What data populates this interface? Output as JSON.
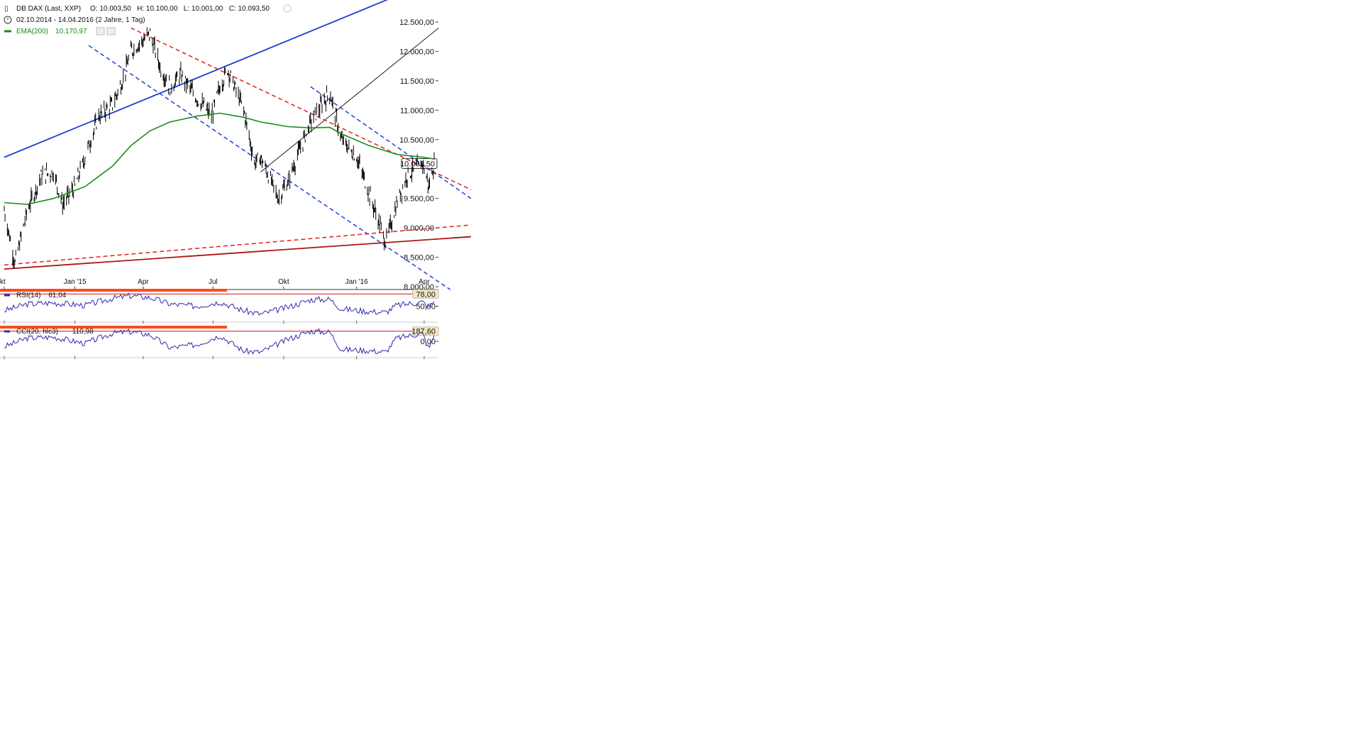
{
  "header": {
    "instrument": "DB DAX (Last, XXP)",
    "ohlc": "O: 10.003,50   H: 10.100,00   L: 10.001,00   C: 10.093,50",
    "range": "02.10.2014 - 14.04.2016 (2 Jahre, 1 Tag)",
    "ema_label": "EMA(200)",
    "ema_value": "10.170,97"
  },
  "colors": {
    "price": "#000000",
    "ema": "#1a8a1a",
    "blue_trend": "#1f3fd6",
    "red_trend": "#e02020",
    "dark_red_trend": "#b01414",
    "indicator": "#2a2ab0",
    "axis_label_box": "#f4e8c0",
    "signal_bar": "#ff4a1a"
  },
  "chart_data": [
    {
      "type": "line",
      "title": "DB DAX (Last, XXP)",
      "x_axis_labels": [
        "kt",
        "Jan '15",
        "Apr",
        "Jul",
        "Okt",
        "Jan '16",
        "Apr"
      ],
      "y_axis_labels": [
        "12.500,00",
        "12.000,00",
        "11.500,00",
        "11.000,00",
        "10.500,00",
        "10.093,50",
        "9.500,00",
        "9.000,00",
        "8.500,00",
        "8.000,00"
      ],
      "ylim": [
        8000,
        12600
      ],
      "last_value_label": "10.093,50",
      "series": [
        {
          "name": "DB DAX",
          "x": [
            "2014-10-02",
            "2014-10-16",
            "2014-11-01",
            "2014-11-20",
            "2014-12-05",
            "2014-12-17",
            "2015-01-02",
            "2015-01-15",
            "2015-02-02",
            "2015-02-20",
            "2015-03-05",
            "2015-03-16",
            "2015-04-10",
            "2015-04-24",
            "2015-05-06",
            "2015-05-20",
            "2015-06-10",
            "2015-06-29",
            "2015-07-10",
            "2015-07-20",
            "2015-08-10",
            "2015-08-24",
            "2015-09-01",
            "2015-09-24",
            "2015-10-07",
            "2015-10-21",
            "2015-11-05",
            "2015-11-30",
            "2015-12-15",
            "2016-01-04",
            "2016-01-20",
            "2016-02-11",
            "2016-02-25",
            "2016-03-10",
            "2016-03-30",
            "2016-04-07",
            "2016-04-14"
          ],
          "values": [
            9300,
            8400,
            9300,
            9900,
            9950,
            9400,
            9700,
            10200,
            10900,
            11100,
            11500,
            12000,
            12300,
            11700,
            11400,
            11600,
            11200,
            10900,
            11400,
            11700,
            11000,
            10100,
            10200,
            9500,
            9800,
            10300,
            10800,
            11300,
            10500,
            10200,
            9600,
            8750,
            9400,
            9900,
            10100,
            9700,
            10093.5
          ]
        },
        {
          "name": "EMA(200)",
          "x": [
            "2014-10-02",
            "2014-11-01",
            "2014-12-05",
            "2015-01-15",
            "2015-02-20",
            "2015-03-16",
            "2015-04-10",
            "2015-05-06",
            "2015-06-10",
            "2015-07-10",
            "2015-08-10",
            "2015-09-01",
            "2015-10-07",
            "2015-11-05",
            "2015-11-30",
            "2015-12-15",
            "2016-01-20",
            "2016-02-25",
            "2016-03-30",
            "2016-04-14"
          ],
          "values": [
            9430,
            9400,
            9500,
            9700,
            10050,
            10400,
            10650,
            10800,
            10900,
            10950,
            10880,
            10800,
            10720,
            10700,
            10710,
            10600,
            10400,
            10250,
            10200,
            10170.97
          ]
        }
      ]
    },
    {
      "type": "line",
      "title": "RSI(14)",
      "value_label": "61,04",
      "y_axis_labels": [
        "78,00",
        "50,00"
      ],
      "ylim": [
        20,
        85
      ],
      "series": [
        {
          "name": "RSI(14)",
          "x": [
            "2014-10-02",
            "2014-11-01",
            "2014-12-05",
            "2015-01-15",
            "2015-02-20",
            "2015-03-16",
            "2015-04-10",
            "2015-05-06",
            "2015-06-10",
            "2015-07-10",
            "2015-08-10",
            "2015-09-01",
            "2015-10-07",
            "2015-11-05",
            "2015-11-30",
            "2015-12-15",
            "2016-01-20",
            "2016-02-11",
            "2016-02-25",
            "2016-03-30",
            "2016-04-07",
            "2016-04-14"
          ],
          "values": [
            40,
            55,
            58,
            52,
            68,
            74,
            70,
            55,
            50,
            60,
            40,
            32,
            48,
            65,
            66,
            44,
            38,
            36,
            52,
            60,
            48,
            61.04
          ]
        }
      ]
    },
    {
      "type": "line",
      "title": "CCI(20, hlc3)",
      "value_label": "110,98",
      "y_axis_labels": [
        "187,60",
        "0,00"
      ],
      "ylim": [
        -250,
        250
      ],
      "series": [
        {
          "name": "CCI(20, hlc3)",
          "x": [
            "2014-10-02",
            "2014-11-01",
            "2014-12-05",
            "2015-01-15",
            "2015-02-20",
            "2015-03-16",
            "2015-04-10",
            "2015-05-06",
            "2015-06-10",
            "2015-07-10",
            "2015-08-10",
            "2015-09-01",
            "2015-10-07",
            "2015-11-05",
            "2015-11-30",
            "2015-12-15",
            "2016-01-20",
            "2016-02-11",
            "2016-02-25",
            "2016-03-30",
            "2016-04-07",
            "2016-04-14"
          ],
          "values": [
            -100,
            60,
            80,
            -40,
            150,
            180,
            120,
            -120,
            -60,
            110,
            -180,
            -200,
            40,
            190,
            170,
            -150,
            -170,
            -200,
            60,
            150,
            -140,
            110.98
          ]
        }
      ]
    }
  ]
}
